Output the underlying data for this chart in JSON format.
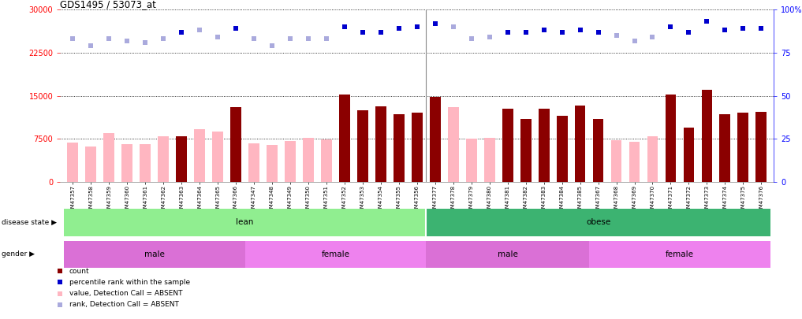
{
  "title": "GDS1495 / 53073_at",
  "samples": [
    "GSM47357",
    "GSM47358",
    "GSM47359",
    "GSM47360",
    "GSM47361",
    "GSM47362",
    "GSM47363",
    "GSM47364",
    "GSM47365",
    "GSM47366",
    "GSM47347",
    "GSM47348",
    "GSM47349",
    "GSM47350",
    "GSM47351",
    "GSM47352",
    "GSM47353",
    "GSM47354",
    "GSM47355",
    "GSM47356",
    "GSM47377",
    "GSM47378",
    "GSM47379",
    "GSM47380",
    "GSM47381",
    "GSM47382",
    "GSM47383",
    "GSM47384",
    "GSM47385",
    "GSM47367",
    "GSM47368",
    "GSM47369",
    "GSM47370",
    "GSM47371",
    "GSM47372",
    "GSM47373",
    "GSM47374",
    "GSM47375",
    "GSM47376"
  ],
  "absent": [
    true,
    true,
    true,
    true,
    true,
    true,
    false,
    true,
    true,
    false,
    true,
    true,
    true,
    true,
    true,
    false,
    false,
    false,
    false,
    false,
    false,
    true,
    true,
    true,
    false,
    false,
    false,
    false,
    false,
    false,
    true,
    true,
    true,
    false,
    false,
    false,
    false,
    false,
    false
  ],
  "values": [
    6800,
    6200,
    8500,
    6600,
    6500,
    8000,
    8000,
    9200,
    8700,
    13000,
    6700,
    6400,
    7100,
    7700,
    7400,
    15200,
    12500,
    13200,
    11800,
    12000,
    14800,
    13000,
    7500,
    7700,
    12700,
    11000,
    12800,
    11500,
    13300,
    11000,
    7200,
    7000,
    8000,
    15200,
    9500,
    16000,
    11800,
    12000,
    12200
  ],
  "percentile_ranks": [
    83,
    79,
    83,
    82,
    81,
    83,
    87,
    88,
    84,
    89,
    83,
    79,
    83,
    83,
    83,
    90,
    87,
    87,
    89,
    90,
    92,
    90,
    83,
    84,
    87,
    87,
    88,
    87,
    88,
    87,
    85,
    82,
    84,
    90,
    87,
    93,
    88,
    89,
    89
  ],
  "disease_state": [
    "lean",
    "lean",
    "lean",
    "lean",
    "lean",
    "lean",
    "lean",
    "lean",
    "lean",
    "lean",
    "lean",
    "lean",
    "lean",
    "lean",
    "lean",
    "lean",
    "lean",
    "lean",
    "lean",
    "lean",
    "obese",
    "obese",
    "obese",
    "obese",
    "obese",
    "obese",
    "obese",
    "obese",
    "obese",
    "obese",
    "obese",
    "obese",
    "obese",
    "obese",
    "obese",
    "obese",
    "obese",
    "obese",
    "obese"
  ],
  "gender": [
    "male",
    "male",
    "male",
    "male",
    "male",
    "male",
    "male",
    "male",
    "male",
    "male",
    "female",
    "female",
    "female",
    "female",
    "female",
    "female",
    "female",
    "female",
    "female",
    "female",
    "male",
    "male",
    "male",
    "male",
    "male",
    "male",
    "male",
    "male",
    "male",
    "female",
    "female",
    "female",
    "female",
    "female",
    "female",
    "female",
    "female",
    "female",
    "female"
  ],
  "ylim_left": [
    0,
    30000
  ],
  "ylim_right": [
    0,
    100
  ],
  "yticks_left": [
    0,
    7500,
    15000,
    22500,
    30000
  ],
  "yticks_right": [
    0,
    25,
    50,
    75,
    100
  ],
  "bar_color_present": "#8B0000",
  "bar_color_absent": "#FFB6C1",
  "dot_color_present": "#0000CD",
  "dot_color_absent": "#AAAADD",
  "lean_color": "#90EE90",
  "obese_color": "#3CB371",
  "male_color": "#DA70D6",
  "female_color": "#EE82EE",
  "bg_color": "#ffffff"
}
